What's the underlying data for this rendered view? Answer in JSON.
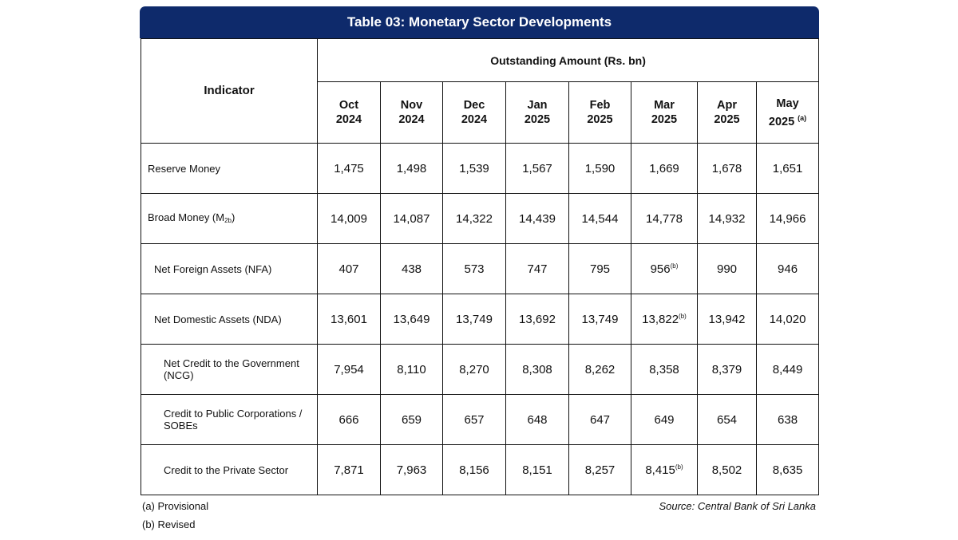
{
  "title": "Table 03: Monetary Sector Developments",
  "header": {
    "indicator": "Indicator",
    "outstanding": "Outstanding Amount (Rs. bn)",
    "months": [
      {
        "m": "Oct",
        "y": "2024",
        "note": ""
      },
      {
        "m": "Nov",
        "y": "2024",
        "note": ""
      },
      {
        "m": "Dec",
        "y": "2024",
        "note": ""
      },
      {
        "m": "Jan",
        "y": "2025",
        "note": ""
      },
      {
        "m": "Feb",
        "y": "2025",
        "note": ""
      },
      {
        "m": "Mar",
        "y": "2025",
        "note": ""
      },
      {
        "m": "Apr",
        "y": "2025",
        "note": ""
      },
      {
        "m": "May",
        "y": "2025",
        "note": "(a)"
      }
    ]
  },
  "rows": [
    {
      "label": "Reserve Money",
      "values": [
        "1,475",
        "1,498",
        "1,539",
        "1,567",
        "1,590",
        "1,669",
        "1,678",
        "1,651"
      ],
      "notes": [
        "",
        "",
        "",
        "",
        "",
        "",
        "",
        ""
      ]
    },
    {
      "label": "Broad Money (M",
      "label_sub": "2b",
      "label_after": ")",
      "values": [
        "14,009",
        "14,087",
        "14,322",
        "14,439",
        "14,544",
        "14,778",
        "14,932",
        "14,966"
      ],
      "notes": [
        "",
        "",
        "",
        "",
        "",
        "",
        "",
        ""
      ]
    },
    {
      "label": "Net Foreign Assets (NFA)",
      "values": [
        "407",
        "438",
        "573",
        "747",
        "795",
        "956",
        "990",
        "946"
      ],
      "notes": [
        "",
        "",
        "",
        "",
        "",
        "(b)",
        "",
        ""
      ]
    },
    {
      "label": "Net Domestic Assets (NDA)",
      "values": [
        "13,601",
        "13,649",
        "13,749",
        "13,692",
        "13,749",
        "13,822",
        "13,942",
        "14,020"
      ],
      "notes": [
        "",
        "",
        "",
        "",
        "",
        "(b)",
        "",
        ""
      ]
    },
    {
      "label": "Net Credit to the Government (NCG)",
      "values": [
        "7,954",
        "8,110",
        "8,270",
        "8,308",
        "8,262",
        "8,358",
        "8,379",
        "8,449"
      ],
      "notes": [
        "",
        "",
        "",
        "",
        "",
        "",
        "",
        ""
      ]
    },
    {
      "label": "Credit to Public Corporations / SOBEs",
      "values": [
        "666",
        "659",
        "657",
        "648",
        "647",
        "649",
        "654",
        "638"
      ],
      "notes": [
        "",
        "",
        "",
        "",
        "",
        "",
        "",
        ""
      ]
    },
    {
      "label": "Credit to the Private Sector",
      "values": [
        "7,871",
        "7,963",
        "8,156",
        "8,151",
        "8,257",
        "8,415",
        "8,502",
        "8,635"
      ],
      "notes": [
        "",
        "",
        "",
        "",
        "",
        "(b)",
        "",
        ""
      ]
    }
  ],
  "footnotes": {
    "a": "(a)  Provisional",
    "b": "(b)  Revised",
    "source": "Source: Central Bank of Sri Lanka"
  },
  "colors": {
    "title_bg": "#0e2a6b",
    "title_text": "#ffffff",
    "border": "#111111"
  }
}
